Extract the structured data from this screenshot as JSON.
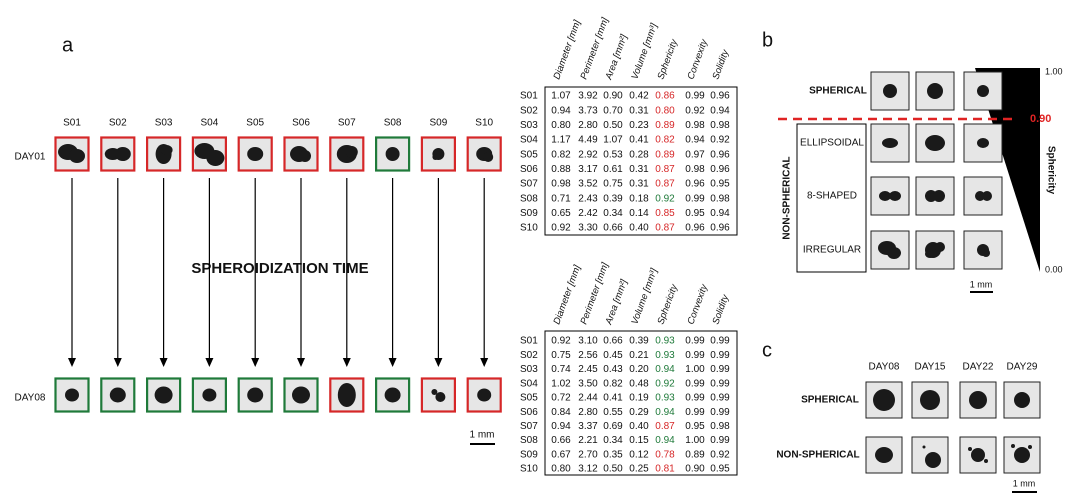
{
  "panel_a": {
    "label": "a",
    "samples": [
      "S01",
      "S02",
      "S03",
      "S04",
      "S05",
      "S06",
      "S07",
      "S08",
      "S09",
      "S10"
    ],
    "days": [
      "DAY01",
      "DAY08"
    ],
    "annotation": "SPHEROIDIZATION TIME",
    "scale_bar": "1 mm",
    "tables": [
      {
        "headers": [
          "Diameter [mm]",
          "Perimeter [mm]",
          "Area [mm²]",
          "Volume [mm³]",
          "Sphericity",
          "Convexity",
          "Solidity"
        ],
        "row_labels": [
          "S01",
          "S02",
          "S03",
          "S04",
          "S05",
          "S06",
          "S07",
          "S08",
          "S09",
          "S10"
        ],
        "rows": [
          [
            "1.07",
            "3.92",
            "0.90",
            "0.42",
            "0.86",
            "0.99",
            "0.96"
          ],
          [
            "0.94",
            "3.73",
            "0.70",
            "0.31",
            "0.80",
            "0.92",
            "0.94"
          ],
          [
            "0.80",
            "2.80",
            "0.50",
            "0.23",
            "0.89",
            "0.98",
            "0.98"
          ],
          [
            "1.17",
            "4.49",
            "1.07",
            "0.41",
            "0.82",
            "0.94",
            "0.92"
          ],
          [
            "0.82",
            "2.92",
            "0.53",
            "0.28",
            "0.89",
            "0.97",
            "0.96"
          ],
          [
            "0.88",
            "3.17",
            "0.61",
            "0.31",
            "0.87",
            "0.98",
            "0.96"
          ],
          [
            "0.98",
            "3.52",
            "0.75",
            "0.31",
            "0.87",
            "0.96",
            "0.95"
          ],
          [
            "0.71",
            "2.43",
            "0.39",
            "0.18",
            "0.92",
            "0.99",
            "0.98"
          ],
          [
            "0.65",
            "2.42",
            "0.34",
            "0.14",
            "0.85",
            "0.95",
            "0.94"
          ],
          [
            "0.92",
            "3.30",
            "0.66",
            "0.40",
            "0.87",
            "0.96",
            "0.96"
          ]
        ]
      },
      {
        "headers": [
          "Diameter [mm]",
          "Perimeter [mm]",
          "Area [mm²]",
          "Volume [mm³]",
          "Sphericity",
          "Convexity",
          "Solidity"
        ],
        "row_labels": [
          "S01",
          "S02",
          "S03",
          "S04",
          "S05",
          "S06",
          "S07",
          "S08",
          "S09",
          "S10"
        ],
        "rows": [
          [
            "0.92",
            "3.10",
            "0.66",
            "0.39",
            "0.93",
            "0.99",
            "0.99"
          ],
          [
            "0.75",
            "2.56",
            "0.45",
            "0.21",
            "0.93",
            "0.99",
            "0.99"
          ],
          [
            "0.74",
            "2.45",
            "0.43",
            "0.20",
            "0.94",
            "1.00",
            "0.99"
          ],
          [
            "1.02",
            "3.50",
            "0.82",
            "0.48",
            "0.92",
            "0.99",
            "0.99"
          ],
          [
            "0.72",
            "2.44",
            "0.41",
            "0.19",
            "0.93",
            "0.99",
            "0.99"
          ],
          [
            "0.84",
            "2.80",
            "0.55",
            "0.29",
            "0.94",
            "0.99",
            "0.99"
          ],
          [
            "0.94",
            "3.37",
            "0.69",
            "0.40",
            "0.87",
            "0.95",
            "0.98"
          ],
          [
            "0.66",
            "2.21",
            "0.34",
            "0.15",
            "0.94",
            "1.00",
            "0.99"
          ],
          [
            "0.67",
            "2.70",
            "0.35",
            "0.12",
            "0.78",
            "0.89",
            "0.92"
          ],
          [
            "0.80",
            "3.12",
            "0.50",
            "0.25",
            "0.81",
            "0.90",
            "0.95"
          ]
        ]
      }
    ]
  },
  "panel_b": {
    "label": "b",
    "rows": [
      "SPHERICAL",
      "ELLIPSOIDAL",
      "8-SHAPED",
      "IRREGULAR"
    ],
    "group_label": "NON-SPHERICAL",
    "threshold": "0.90",
    "axis_label": "Sphericity",
    "axis_top": "1.00",
    "axis_bottom": "0.00",
    "scale_bar": "1 mm"
  },
  "panel_c": {
    "label": "c",
    "days": [
      "DAY08",
      "DAY15",
      "DAY22",
      "DAY29"
    ],
    "rows": [
      "SPHERICAL",
      "NON-SPHERICAL"
    ],
    "scale_bar": "1 mm"
  }
}
